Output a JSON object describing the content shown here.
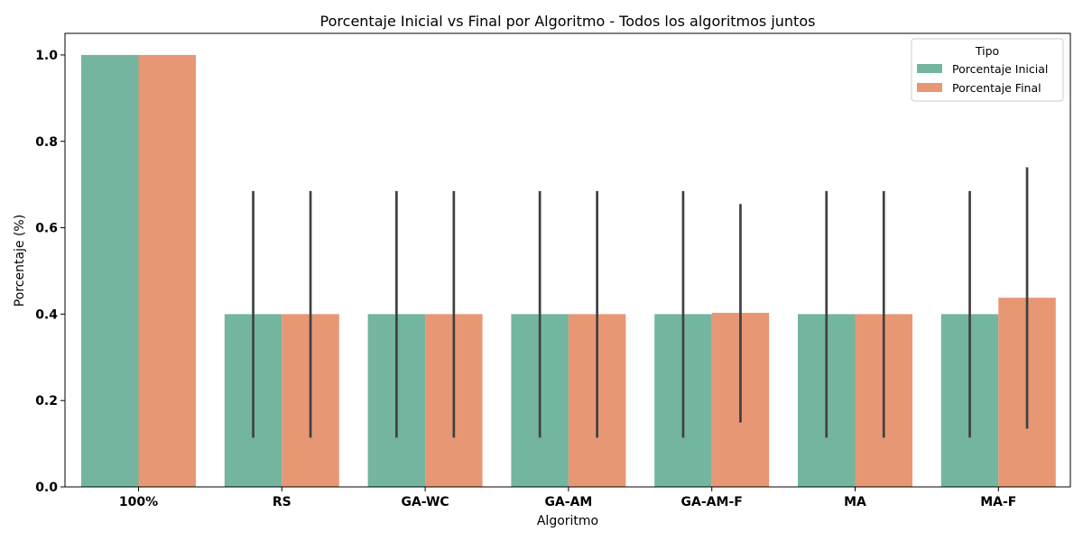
{
  "chart_data": {
    "type": "bar",
    "title": "Porcentaje Inicial vs Final por Algoritmo - Todos los algoritmos juntos",
    "xlabel": "Algoritmo",
    "ylabel": "Porcentaje (%)",
    "ylim": [
      0,
      1.05
    ],
    "yticks": [
      "0.0",
      "0.2",
      "0.4",
      "0.6",
      "0.8",
      "1.0"
    ],
    "categories": [
      "100%",
      "RS",
      "GA-WC",
      "GA-AM",
      "GA-AM-F",
      "MA",
      "MA-F"
    ],
    "legend": {
      "title": "Tipo",
      "position": "top-right"
    },
    "series": [
      {
        "name": "Porcentaje Inicial",
        "color": "#73b59f",
        "values": [
          1.0,
          0.4,
          0.4,
          0.4,
          0.4,
          0.4,
          0.4
        ],
        "error_low": [
          1.0,
          0.114,
          0.114,
          0.114,
          0.114,
          0.114,
          0.114
        ],
        "error_high": [
          1.0,
          0.685,
          0.685,
          0.685,
          0.685,
          0.685,
          0.685
        ]
      },
      {
        "name": "Porcentaje Final",
        "color": "#e89774",
        "values": [
          1.0,
          0.4,
          0.4,
          0.4,
          0.403,
          0.4,
          0.438
        ],
        "error_low": [
          1.0,
          0.114,
          0.114,
          0.114,
          0.149,
          0.114,
          0.135
        ],
        "error_high": [
          1.0,
          0.685,
          0.685,
          0.685,
          0.655,
          0.685,
          0.74
        ]
      }
    ],
    "error_bar_color": "#404040",
    "grid": false
  }
}
